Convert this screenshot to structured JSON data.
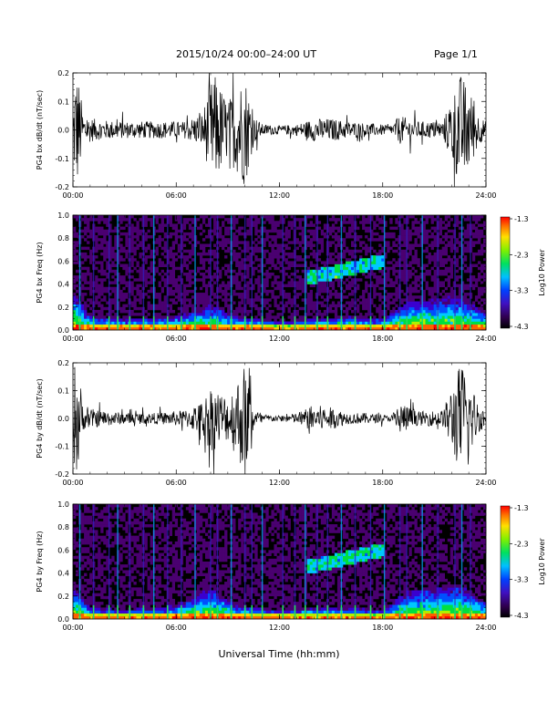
{
  "header": {
    "date_range": "2015/10/24  00:00–24:00 UT",
    "page": "Page 1/1"
  },
  "colorbar_colors": [
    "#000000",
    "#4a0070",
    "#3a00d0",
    "#0050ff",
    "#00c8ff",
    "#00e040",
    "#b0f000",
    "#ffd000",
    "#ff6000",
    "#ff0000"
  ],
  "chart_data": [
    {
      "type": "line",
      "ylabel": "PG4 bx dB/dt (nT/sec)",
      "xlabel": "",
      "ylim": [
        -0.2,
        0.2
      ],
      "yticks": [
        "0.2",
        "0.1",
        "0.0",
        "-0.1",
        "-0.2"
      ],
      "xticks": [
        "00:00",
        "06:00",
        "12:00",
        "18:00",
        "24:00"
      ],
      "x_range_hours": [
        0,
        24
      ],
      "activity_envelope": [
        {
          "x": 0.0,
          "amp": 0.02
        },
        {
          "x": 0.1,
          "amp": 0.2
        },
        {
          "x": 0.3,
          "amp": 0.2
        },
        {
          "x": 0.6,
          "amp": 0.05
        },
        {
          "x": 1.5,
          "amp": 0.035
        },
        {
          "x": 3.0,
          "amp": 0.03
        },
        {
          "x": 5.0,
          "amp": 0.03
        },
        {
          "x": 6.5,
          "amp": 0.03
        },
        {
          "x": 7.5,
          "amp": 0.06
        },
        {
          "x": 8.2,
          "amp": 0.2
        },
        {
          "x": 9.0,
          "amp": 0.1
        },
        {
          "x": 10.0,
          "amp": 0.2
        },
        {
          "x": 10.5,
          "amp": 0.05
        },
        {
          "x": 11.0,
          "amp": 0.02
        },
        {
          "x": 12.0,
          "amp": 0.015
        },
        {
          "x": 13.0,
          "amp": 0.02
        },
        {
          "x": 14.0,
          "amp": 0.04
        },
        {
          "x": 15.0,
          "amp": 0.04
        },
        {
          "x": 16.0,
          "amp": 0.03
        },
        {
          "x": 17.0,
          "amp": 0.025
        },
        {
          "x": 18.5,
          "amp": 0.015
        },
        {
          "x": 19.0,
          "amp": 0.05
        },
        {
          "x": 20.0,
          "amp": 0.03
        },
        {
          "x": 21.5,
          "amp": 0.03
        },
        {
          "x": 22.5,
          "amp": 0.2
        },
        {
          "x": 23.0,
          "amp": 0.15
        },
        {
          "x": 23.6,
          "amp": 0.05
        },
        {
          "x": 24.0,
          "amp": 0.03
        }
      ]
    },
    {
      "type": "heatmap",
      "ylabel": "PG4 bx Freq (Hz)",
      "ylim": [
        0.0,
        1.0
      ],
      "yticks": [
        "1.0",
        "0.8",
        "0.6",
        "0.4",
        "0.2",
        "0.0"
      ],
      "xticks": [
        "00:00",
        "06:00",
        "12:00",
        "18:00",
        "24:00"
      ],
      "x_range_hours": [
        0,
        24
      ],
      "colorbar": {
        "label": "Log10 Power",
        "ticks": [
          "-1.3",
          "-2.3",
          "-3.3",
          "-4.3"
        ],
        "range": [
          -4.3,
          -1.3
        ]
      },
      "low_freq_enhancement": [
        {
          "x": 0.0,
          "h": 0.35
        },
        {
          "x": 1.0,
          "h": 0.12
        },
        {
          "x": 3.0,
          "h": 0.1
        },
        {
          "x": 6.0,
          "h": 0.12
        },
        {
          "x": 8.0,
          "h": 0.22
        },
        {
          "x": 9.5,
          "h": 0.12
        },
        {
          "x": 12.0,
          "h": 0.08
        },
        {
          "x": 14.0,
          "h": 0.1
        },
        {
          "x": 16.0,
          "h": 0.12
        },
        {
          "x": 18.0,
          "h": 0.1
        },
        {
          "x": 19.5,
          "h": 0.25
        },
        {
          "x": 22.5,
          "h": 0.3
        },
        {
          "x": 24.0,
          "h": 0.15
        }
      ],
      "vertical_streaks_hours": [
        0.4,
        1.2,
        2.1,
        2.6,
        3.3,
        4.1,
        4.7,
        5.5,
        6.3,
        7.1,
        8.0,
        8.4,
        9.2,
        10.0,
        10.4,
        11.0,
        12.2,
        12.9,
        13.5,
        14.2,
        14.8,
        15.6,
        16.4,
        17.3,
        18.1,
        19.0,
        19.4,
        20.3,
        21.2,
        22.2,
        22.6,
        23.1
      ],
      "emission_band": {
        "x_start": 13.6,
        "x_end": 18.0,
        "f_start": 0.45,
        "f_end": 0.6
      }
    },
    {
      "type": "line",
      "ylabel": "PG4 by dB/dt (nT/sec)",
      "xlabel": "",
      "ylim": [
        -0.2,
        0.2
      ],
      "yticks": [
        "0.2",
        "0.1",
        "0.0",
        "-0.1",
        "-0.2"
      ],
      "xticks": [
        "00:00",
        "06:00",
        "12:00",
        "18:00",
        "24:00"
      ],
      "x_range_hours": [
        0,
        24
      ],
      "activity_envelope": [
        {
          "x": 0.0,
          "amp": 0.02
        },
        {
          "x": 0.1,
          "amp": 0.2
        },
        {
          "x": 0.3,
          "amp": 0.2
        },
        {
          "x": 0.6,
          "amp": 0.04
        },
        {
          "x": 1.5,
          "amp": 0.03
        },
        {
          "x": 3.0,
          "amp": 0.02
        },
        {
          "x": 5.0,
          "amp": 0.02
        },
        {
          "x": 6.5,
          "amp": 0.03
        },
        {
          "x": 7.5,
          "amp": 0.06
        },
        {
          "x": 8.0,
          "amp": 0.12
        },
        {
          "x": 9.0,
          "amp": 0.08
        },
        {
          "x": 10.0,
          "amp": 0.2
        },
        {
          "x": 10.5,
          "amp": 0.04
        },
        {
          "x": 11.0,
          "amp": 0.015
        },
        {
          "x": 12.0,
          "amp": 0.01
        },
        {
          "x": 13.0,
          "amp": 0.02
        },
        {
          "x": 14.0,
          "amp": 0.05
        },
        {
          "x": 15.0,
          "amp": 0.04
        },
        {
          "x": 16.0,
          "amp": 0.02
        },
        {
          "x": 17.0,
          "amp": 0.02
        },
        {
          "x": 18.5,
          "amp": 0.01
        },
        {
          "x": 19.0,
          "amp": 0.06
        },
        {
          "x": 20.0,
          "amp": 0.025
        },
        {
          "x": 21.5,
          "amp": 0.03
        },
        {
          "x": 22.5,
          "amp": 0.2
        },
        {
          "x": 23.0,
          "amp": 0.15
        },
        {
          "x": 23.6,
          "amp": 0.05
        },
        {
          "x": 24.0,
          "amp": 0.03
        }
      ]
    },
    {
      "type": "heatmap",
      "ylabel": "PG4 by Freq (Hz)",
      "ylim": [
        0.0,
        1.0
      ],
      "yticks": [
        "1.0",
        "0.8",
        "0.6",
        "0.4",
        "0.2",
        "0.0"
      ],
      "xticks": [
        "00:00",
        "06:00",
        "12:00",
        "18:00",
        "24:00"
      ],
      "x_range_hours": [
        0,
        24
      ],
      "colorbar": {
        "label": "Log10 Power",
        "ticks": [
          "-1.3",
          "-2.3",
          "-3.3",
          "-4.3"
        ],
        "range": [
          -4.3,
          -1.3
        ]
      },
      "low_freq_enhancement": [
        {
          "x": 0.0,
          "h": 0.3
        },
        {
          "x": 1.0,
          "h": 0.1
        },
        {
          "x": 3.0,
          "h": 0.08
        },
        {
          "x": 6.0,
          "h": 0.12
        },
        {
          "x": 8.0,
          "h": 0.28
        },
        {
          "x": 9.5,
          "h": 0.12
        },
        {
          "x": 12.0,
          "h": 0.08
        },
        {
          "x": 14.0,
          "h": 0.1
        },
        {
          "x": 16.0,
          "h": 0.1
        },
        {
          "x": 18.0,
          "h": 0.08
        },
        {
          "x": 19.5,
          "h": 0.25
        },
        {
          "x": 22.5,
          "h": 0.3
        },
        {
          "x": 24.0,
          "h": 0.15
        }
      ],
      "vertical_streaks_hours": [
        0.4,
        1.2,
        2.1,
        2.6,
        3.3,
        4.1,
        4.7,
        5.5,
        6.3,
        7.1,
        8.0,
        8.4,
        9.2,
        10.0,
        10.4,
        11.0,
        12.2,
        12.9,
        13.5,
        14.2,
        14.8,
        15.6,
        16.4,
        17.3,
        18.1,
        19.0,
        19.4,
        20.3,
        21.2,
        22.2,
        22.6,
        23.1
      ],
      "emission_band": {
        "x_start": 13.6,
        "x_end": 18.0,
        "f_start": 0.45,
        "f_end": 0.6
      }
    }
  ],
  "x_axis_title": "Universal Time (hh:mm)"
}
